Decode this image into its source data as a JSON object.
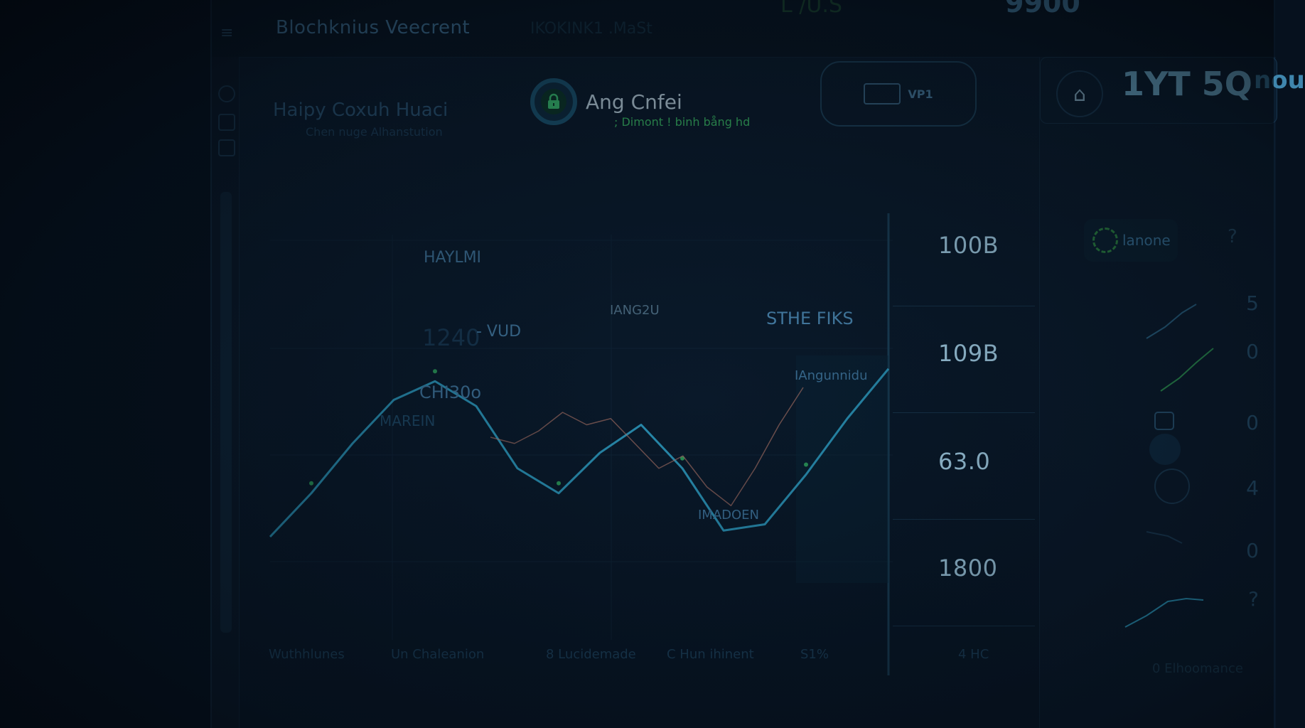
{
  "topbar": {
    "brand": "Blochknius Veecrent",
    "dim_label": "IKOKINK1 .MaSt",
    "pill_value": "L /U.S",
    "big_value": "9900"
  },
  "header": {
    "title": "Haipy Coxuh Huaci",
    "subtitle": "Chen nuge Alhanstution"
  },
  "security": {
    "title": "Ang Cnfei",
    "subtitle": "; Dimont ! binh bång hd"
  },
  "chip": {
    "label": "VP1"
  },
  "right_panel": {
    "value": "1YT 5Q",
    "value_suffix": "nou",
    "badge_label": "lanone",
    "badge_hint": "?",
    "side_numbers": [
      "5",
      "0",
      "0",
      "4",
      "0",
      "?"
    ],
    "footer": "0 Elhoomance"
  },
  "value_column": [
    "100B",
    "109B",
    "63.0",
    "1800"
  ],
  "annotations": {
    "a1": "HAYLMI",
    "a2": "1240",
    "a3": "- VUD",
    "a4": "CHI30o",
    "a5": "MAREIN",
    "a6": "IANG2U",
    "a7": "STHE FIKS",
    "a8": "IAngunnidu",
    "a9": "IMADOEN"
  },
  "footer_labels": [
    "Wuthhlunes",
    "Un Chaleanion",
    "8 Lucidemade",
    "C Hun ihinent",
    "S1%",
    "4 HC"
  ],
  "chart_data": {
    "type": "line",
    "series": [
      {
        "values": [
          8,
          22,
          38,
          52,
          58,
          50,
          30,
          22,
          35,
          44,
          30,
          10,
          12,
          28,
          46,
          62
        ]
      },
      {
        "values": [
          40,
          38,
          42,
          48,
          44,
          46,
          38,
          30,
          34,
          24,
          18,
          30,
          44,
          56
        ]
      }
    ],
    "colors": {
      "main": "#2fa3c9",
      "secondary": "#b97a6a",
      "accent": "#38c66a"
    }
  }
}
